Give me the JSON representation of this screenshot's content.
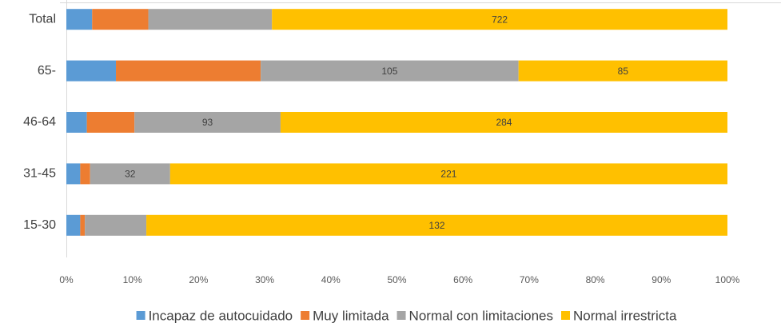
{
  "chart_data": {
    "type": "stacked_barh",
    "categories": [
      "Total",
      "65-",
      "46-64",
      "31-45",
      "15-30"
    ],
    "series": [
      {
        "name": "Incapaz de autocuidado",
        "color": "#5b9bd5",
        "values": [
          3.9,
          7.5,
          3.1,
          2.1,
          2.1
        ],
        "data_labels": [
          null,
          null,
          null,
          null,
          null
        ]
      },
      {
        "name": "Muy limitada",
        "color": "#ed7d31",
        "values": [
          8.5,
          21.9,
          7.2,
          1.5,
          0.7
        ],
        "data_labels": [
          null,
          null,
          null,
          null,
          null
        ]
      },
      {
        "name": "Normal con limitaciones",
        "color": "#a5a5a5",
        "values": [
          18.7,
          39.0,
          22.1,
          12.1,
          9.3
        ],
        "data_labels": [
          null,
          105,
          93,
          32,
          null
        ]
      },
      {
        "name": "Normal irrestricta",
        "color": "#ffc000",
        "values": [
          68.9,
          31.6,
          67.6,
          84.3,
          87.9
        ],
        "data_labels": [
          722,
          85,
          284,
          221,
          132
        ]
      }
    ],
    "xlim": [
      0,
      100
    ],
    "xticks": [
      {
        "value": 0,
        "label": "0%"
      },
      {
        "value": 10,
        "label": "10%"
      },
      {
        "value": 20,
        "label": "20%"
      },
      {
        "value": 30,
        "label": "30%"
      },
      {
        "value": 40,
        "label": "40%"
      },
      {
        "value": 50,
        "label": "50%"
      },
      {
        "value": 60,
        "label": "60%"
      },
      {
        "value": 70,
        "label": "70%"
      },
      {
        "value": 80,
        "label": "80%"
      },
      {
        "value": 90,
        "label": "90%"
      },
      {
        "value": 100,
        "label": "100%"
      }
    ],
    "legend": "bottom"
  }
}
